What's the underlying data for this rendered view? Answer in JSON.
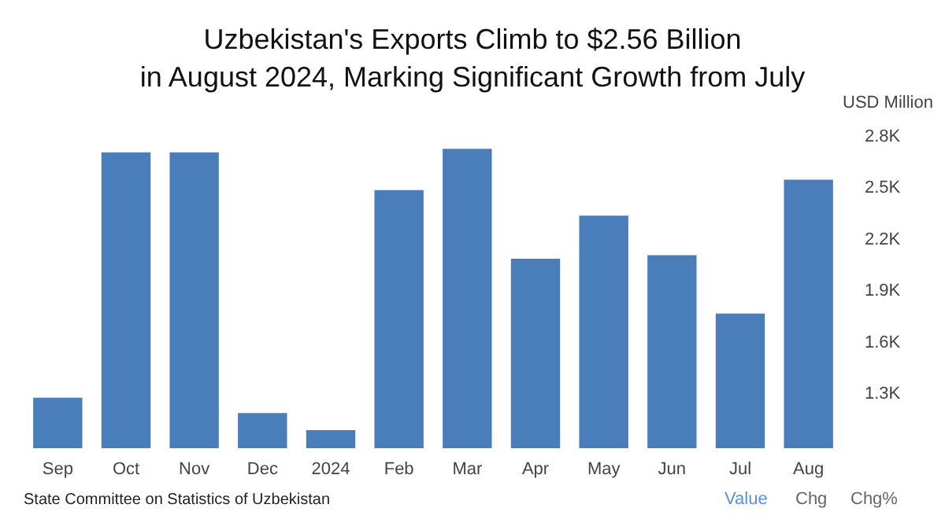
{
  "chart_data": {
    "type": "bar",
    "title": "Uzbekistan's Exports Climb to $2.56 Billion\nin August 2024, Marking Significant Growth from July",
    "ylabel": "USD Million",
    "categories": [
      "Sep",
      "Oct",
      "Nov",
      "Dec",
      "2024",
      "Feb",
      "Mar",
      "Apr",
      "May",
      "Jun",
      "Jul",
      "Aug"
    ],
    "values": [
      1280,
      2710,
      2710,
      1190,
      1090,
      2490,
      2730,
      2090,
      2340,
      2110,
      1770,
      2550
    ],
    "color": "#4a7ebb",
    "ylim": [
      985,
      2800
    ],
    "yticks": [
      {
        "value": 1300,
        "label": "1.3K"
      },
      {
        "value": 1600,
        "label": "1.6K"
      },
      {
        "value": 1900,
        "label": "1.9K"
      },
      {
        "value": 2200,
        "label": "2.2K"
      },
      {
        "value": 2500,
        "label": "2.5K"
      },
      {
        "value": 2800,
        "label": "2.8K"
      }
    ],
    "grid": false,
    "annotations": [
      "State Committee on Statistics of Uzbekistan",
      "Value",
      "Chg",
      "Chg%"
    ]
  }
}
